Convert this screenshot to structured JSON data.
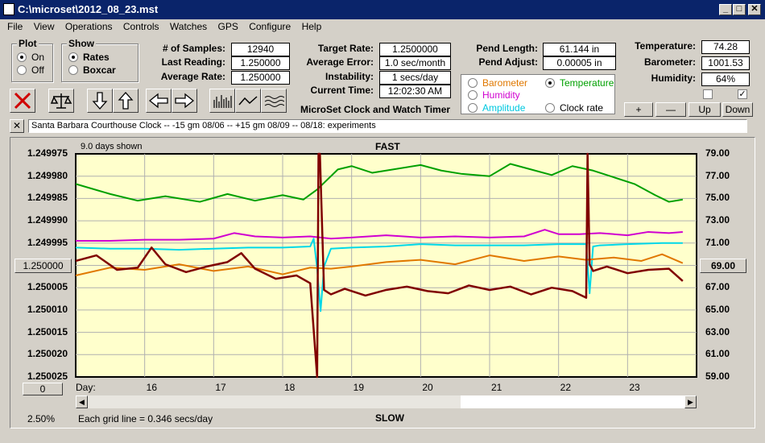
{
  "window": {
    "title": "C:\\microset\\2012_08_23.mst",
    "min": "_",
    "max": "□",
    "close": "✕"
  },
  "menu": [
    "File",
    "View",
    "Operations",
    "Controls",
    "Watches",
    "GPS",
    "Configure",
    "Help"
  ],
  "plot": {
    "title": "Plot",
    "on": "On",
    "off": "Off",
    "selected": "On"
  },
  "show": {
    "title": "Show",
    "rates": "Rates",
    "boxcar": "Boxcar",
    "selected": "Rates"
  },
  "stats": {
    "samples_label": "# of Samples:",
    "samples": "12940",
    "last_label": "Last Reading:",
    "last": "1.250000",
    "avg_label": "Average Rate:",
    "avg": "1.250000",
    "target_label": "Target Rate:",
    "target": "1.2500000",
    "avgerr_label": "Average Error:",
    "avgerr": "1.0 sec/month",
    "instab_label": "Instability:",
    "instab": "1 secs/day",
    "time_label": "Current Time:",
    "time": "12:02:30 AM",
    "pendlen_label": "Pend Length:",
    "pendlen": "61.144 in",
    "pendadj_label": "Pend Adjust:",
    "pendadj": "0.00005 in",
    "temp_label": "Temperature:",
    "temp": "74.28",
    "baro_label": "Barometer:",
    "baro": "1001.53",
    "hum_label": "Humidity:",
    "hum": "64%"
  },
  "app_name": "MicroSet Clock and Watch Timer",
  "sensors": {
    "barometer": "Barometer",
    "temperature": "Temperature",
    "humidity": "Humidity",
    "amplitude": "Amplitude",
    "clock_rate": "Clock rate",
    "selected": "Temperature",
    "colors": {
      "barometer": "#e07800",
      "temperature": "#00a000",
      "humidity": "#d000d0",
      "amplitude": "#00d8e8",
      "clock_rate": "#000000"
    }
  },
  "small_buttons": {
    "plus": "+",
    "minus": "—",
    "up": "Up",
    "down": "Down"
  },
  "toolbar_icons": [
    "close-icon",
    "balance-icon",
    "arrow-down-icon",
    "arrow-up-icon",
    "arrow-left-icon",
    "arrow-right-icon",
    "bars-icon",
    "line-icon",
    "waves-icon"
  ],
  "note": {
    "close": "✕",
    "text": "Santa Barbara Courthouse Clock  --   -15 gm 08/06  --  +15 gm 08/09  --  08/18: experiments"
  },
  "chart": {
    "days_shown": "9.0 days shown",
    "fast": "FAST",
    "slow": "SLOW",
    "left_value_btn": "1.250000",
    "right_value_btn": "69.00",
    "bottom_value_btn": "0",
    "percent": "2.50%",
    "grid_note": "Each grid line = 0.346 secs/day",
    "day_label": "Day:",
    "colors": {
      "plot_bg": "#ffffcc",
      "grid": "#b0b0b0",
      "rate": "#800000"
    }
  },
  "chart_data": {
    "type": "line",
    "left_ticks": [
      "1.249975",
      "1.249980",
      "1.249985",
      "1.249990",
      "1.249995",
      "1.250000",
      "1.250005",
      "1.250010",
      "1.250015",
      "1.250020",
      "1.250025"
    ],
    "right_ticks": [
      "79.00",
      "77.00",
      "75.00",
      "73.00",
      "71.00",
      "69.00",
      "67.00",
      "65.00",
      "63.00",
      "61.00",
      "59.00"
    ],
    "x_ticks": [
      "16",
      "17",
      "18",
      "19",
      "20",
      "21",
      "22",
      "23"
    ],
    "ylim_left": [
      1.250025,
      1.249975
    ],
    "ylim_right": [
      59,
      79
    ],
    "xlim": [
      15.0,
      24.0
    ],
    "series": [
      {
        "color": "#00a000",
        "x": [
          15.0,
          15.5,
          15.9,
          16.3,
          16.8,
          17.2,
          17.6,
          18.0,
          18.3,
          18.5,
          18.8,
          19.0,
          19.3,
          19.6,
          20.0,
          20.3,
          20.6,
          21.0,
          21.3,
          21.6,
          21.9,
          22.2,
          22.5,
          22.8,
          23.1,
          23.4,
          23.6,
          23.8
        ],
        "values": [
          76.3,
          75.4,
          74.8,
          75.2,
          74.7,
          75.4,
          74.8,
          75.3,
          74.9,
          75.8,
          77.6,
          77.9,
          77.3,
          77.6,
          78.0,
          77.5,
          77.2,
          77.0,
          78.1,
          77.6,
          77.1,
          77.9,
          77.5,
          76.9,
          76.3,
          75.3,
          74.7,
          74.9
        ]
      },
      {
        "color": "#d000d0",
        "x": [
          15.0,
          15.5,
          16.0,
          16.5,
          17.0,
          17.3,
          17.6,
          18.0,
          18.4,
          18.7,
          19.0,
          19.5,
          20.0,
          20.5,
          21.0,
          21.5,
          21.8,
          22.0,
          22.3,
          22.6,
          23.0,
          23.3,
          23.6,
          23.8
        ],
        "values": [
          71.2,
          71.2,
          71.3,
          71.3,
          71.4,
          71.9,
          71.6,
          71.5,
          71.6,
          71.4,
          71.5,
          71.7,
          71.5,
          71.6,
          71.5,
          71.6,
          72.2,
          71.8,
          71.8,
          71.9,
          71.7,
          72.0,
          71.9,
          72.0
        ]
      },
      {
        "color": "#00d8e8",
        "x": [
          15.0,
          15.5,
          16.0,
          16.5,
          17.0,
          17.5,
          18.0,
          18.4,
          18.45,
          18.5,
          18.55,
          18.6,
          18.7,
          19.0,
          19.5,
          20.0,
          20.5,
          21.0,
          21.5,
          22.0,
          22.4,
          22.45,
          22.5,
          22.6,
          23.0,
          23.5,
          23.8
        ],
        "values": [
          70.6,
          70.5,
          70.5,
          70.4,
          70.5,
          70.6,
          70.6,
          70.7,
          71.4,
          68.7,
          64.9,
          68.9,
          70.5,
          70.6,
          70.7,
          70.9,
          70.8,
          70.8,
          70.8,
          70.9,
          70.9,
          66.5,
          70.7,
          70.8,
          70.9,
          71.0,
          71.0
        ]
      },
      {
        "color": "#e07800",
        "x": [
          15.0,
          15.5,
          16.0,
          16.5,
          17.0,
          17.5,
          18.0,
          18.4,
          18.7,
          19.0,
          19.5,
          20.0,
          20.5,
          21.0,
          21.5,
          22.0,
          22.4,
          22.8,
          23.2,
          23.5,
          23.8
        ],
        "values": [
          68.1,
          68.8,
          68.6,
          69.1,
          68.5,
          68.9,
          68.2,
          68.8,
          68.7,
          68.9,
          69.3,
          69.5,
          69.1,
          69.9,
          69.4,
          69.8,
          69.5,
          69.7,
          69.4,
          70.0,
          69.2
        ]
      },
      {
        "color": "#800000",
        "x": [
          15.0,
          15.3,
          15.6,
          15.9,
          16.1,
          16.3,
          16.6,
          16.9,
          17.2,
          17.4,
          17.6,
          17.9,
          18.2,
          18.4,
          18.5,
          18.52,
          18.54,
          18.6,
          18.7,
          18.9,
          19.2,
          19.5,
          19.8,
          20.1,
          20.4,
          20.7,
          21.0,
          21.3,
          21.6,
          21.9,
          22.2,
          22.4,
          22.42,
          22.45,
          22.5,
          22.7,
          23.0,
          23.3,
          23.6,
          23.8
        ],
        "values": [
          69.4,
          69.9,
          68.6,
          68.8,
          70.6,
          69.1,
          68.4,
          68.9,
          69.3,
          70.1,
          68.7,
          67.8,
          68.1,
          67.4,
          59.0,
          79.0,
          79.0,
          66.8,
          66.4,
          66.9,
          66.3,
          66.8,
          67.1,
          66.7,
          66.5,
          67.2,
          66.8,
          67.1,
          66.4,
          67.0,
          66.7,
          66.1,
          79.0,
          69.1,
          68.5,
          68.9,
          68.3,
          68.6,
          68.7,
          67.6
        ]
      }
    ]
  }
}
